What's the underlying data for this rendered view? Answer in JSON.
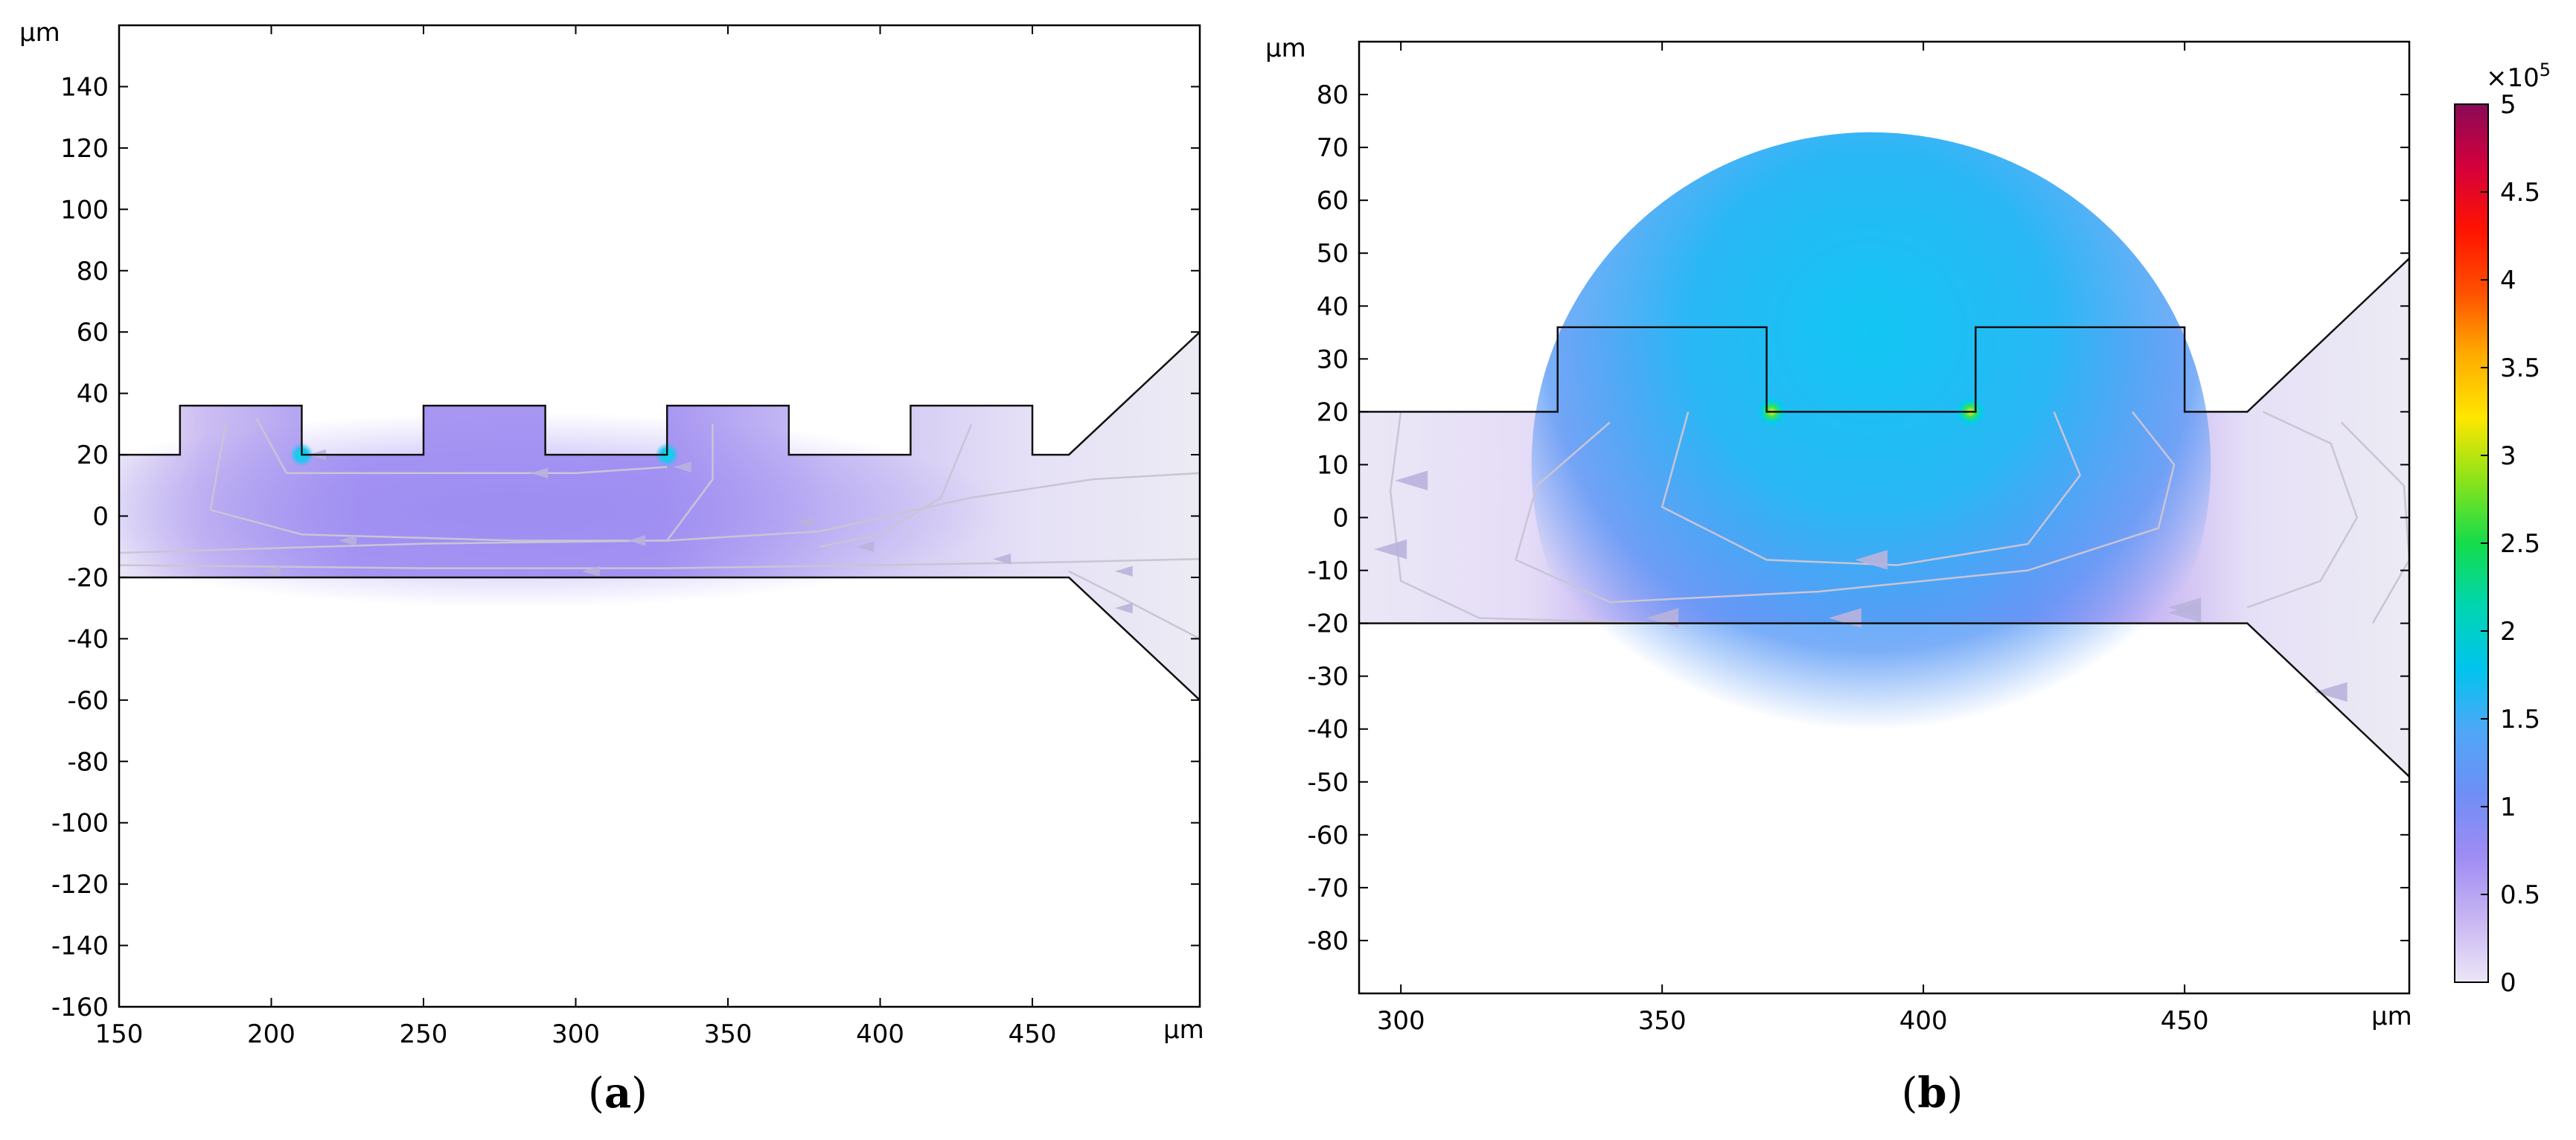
{
  "chart_data": [
    {
      "type": "heatmap",
      "panel_label": {
        "open": "(",
        "letter": "a",
        "close": ")"
      },
      "x_unit": "μm",
      "y_unit": "μm",
      "xlim": [
        150,
        505
      ],
      "ylim": [
        -160,
        160
      ],
      "x_ticks": [
        {
          "value": 150,
          "label": "150"
        },
        {
          "value": 200,
          "label": "200"
        },
        {
          "value": 250,
          "label": "250"
        },
        {
          "value": 300,
          "label": "300"
        },
        {
          "value": 350,
          "label": "350"
        },
        {
          "value": 400,
          "label": "400"
        },
        {
          "value": 450,
          "label": "450"
        }
      ],
      "y_ticks": [
        {
          "value": 140,
          "label": "140"
        },
        {
          "value": 120,
          "label": "120"
        },
        {
          "value": 100,
          "label": "100"
        },
        {
          "value": 80,
          "label": "80"
        },
        {
          "value": 60,
          "label": "60"
        },
        {
          "value": 40,
          "label": "40"
        },
        {
          "value": 20,
          "label": "20"
        },
        {
          "value": 0,
          "label": "0"
        },
        {
          "value": -20,
          "label": "-20"
        },
        {
          "value": -40,
          "label": "-40"
        },
        {
          "value": -60,
          "label": "-60"
        },
        {
          "value": -80,
          "label": "-80"
        },
        {
          "value": -100,
          "label": "-100"
        },
        {
          "value": -120,
          "label": "-120"
        },
        {
          "value": -140,
          "label": "-140"
        },
        {
          "value": -160,
          "label": "-160"
        }
      ],
      "channel_outline_top": [
        [
          150,
          20
        ],
        [
          170,
          20
        ],
        [
          170,
          36
        ],
        [
          210,
          36
        ],
        [
          210,
          20
        ],
        [
          250,
          20
        ],
        [
          250,
          36
        ],
        [
          290,
          36
        ],
        [
          290,
          20
        ],
        [
          330,
          20
        ],
        [
          330,
          36
        ],
        [
          370,
          36
        ],
        [
          370,
          20
        ],
        [
          410,
          20
        ],
        [
          410,
          36
        ],
        [
          450,
          36
        ],
        [
          450,
          20
        ],
        [
          462,
          20
        ],
        [
          505,
          60
        ]
      ],
      "channel_outline_bottom": [
        [
          150,
          -20
        ],
        [
          462,
          -20
        ],
        [
          505,
          -60
        ]
      ],
      "hotspots": [
        [
          210,
          20
        ],
        [
          330,
          20
        ]
      ],
      "streamline_arrows": [
        [
          215,
          20
        ],
        [
          288,
          14
        ],
        [
          225,
          -8
        ],
        [
          320,
          -8
        ],
        [
          200,
          -18
        ],
        [
          305,
          -18
        ],
        [
          395,
          -10
        ],
        [
          440,
          -14
        ],
        [
          480,
          -18
        ],
        [
          335,
          16
        ],
        [
          375,
          -2
        ],
        [
          480,
          -30
        ]
      ]
    },
    {
      "type": "heatmap",
      "panel_label": {
        "open": "(",
        "letter": "b",
        "close": ")"
      },
      "x_unit": "μm",
      "y_unit": "μm",
      "xlim": [
        292,
        493
      ],
      "ylim": [
        -90,
        90
      ],
      "x_ticks": [
        {
          "value": 300,
          "label": "300"
        },
        {
          "value": 350,
          "label": "350"
        },
        {
          "value": 400,
          "label": "400"
        },
        {
          "value": 450,
          "label": "450"
        }
      ],
      "y_ticks": [
        {
          "value": 80,
          "label": "80"
        },
        {
          "value": 70,
          "label": "70"
        },
        {
          "value": 60,
          "label": "60"
        },
        {
          "value": 50,
          "label": "50"
        },
        {
          "value": 40,
          "label": "40"
        },
        {
          "value": 30,
          "label": "30"
        },
        {
          "value": 20,
          "label": "20"
        },
        {
          "value": 10,
          "label": "10"
        },
        {
          "value": 0,
          "label": "0"
        },
        {
          "value": -10,
          "label": "-10"
        },
        {
          "value": -20,
          "label": "-20"
        },
        {
          "value": -30,
          "label": "-30"
        },
        {
          "value": -40,
          "label": "-40"
        },
        {
          "value": -50,
          "label": "-50"
        },
        {
          "value": -60,
          "label": "-60"
        },
        {
          "value": -70,
          "label": "-70"
        },
        {
          "value": -80,
          "label": "-80"
        }
      ],
      "channel_outline_top": [
        [
          292,
          20
        ],
        [
          330,
          20
        ],
        [
          330,
          36
        ],
        [
          370,
          36
        ],
        [
          370,
          20
        ],
        [
          410,
          20
        ],
        [
          410,
          36
        ],
        [
          450,
          36
        ],
        [
          450,
          20
        ],
        [
          462,
          20
        ],
        [
          493,
          49
        ]
      ],
      "channel_outline_bottom": [
        [
          292,
          -20
        ],
        [
          462,
          -20
        ],
        [
          493,
          -49
        ]
      ],
      "hotspots": [
        [
          371,
          20
        ],
        [
          409,
          20
        ]
      ],
      "streamline_arrows": [
        [
          302,
          7
        ],
        [
          390,
          -8
        ],
        [
          385,
          -19
        ],
        [
          350,
          -19
        ],
        [
          450,
          -18
        ],
        [
          450,
          -17
        ],
        [
          478,
          -33
        ],
        [
          298,
          -6
        ]
      ]
    }
  ],
  "colorbar": {
    "multiplier_base": "×10",
    "multiplier_exp": "5",
    "min": 0,
    "max": 5,
    "ticks": [
      {
        "value": 5,
        "label": "5"
      },
      {
        "value": 4.5,
        "label": "4.5"
      },
      {
        "value": 4,
        "label": "4"
      },
      {
        "value": 3.5,
        "label": "3.5"
      },
      {
        "value": 3,
        "label": "3"
      },
      {
        "value": 2.5,
        "label": "2.5"
      },
      {
        "value": 2,
        "label": "2"
      },
      {
        "value": 1.5,
        "label": "1.5"
      },
      {
        "value": 1,
        "label": "1"
      },
      {
        "value": 0.5,
        "label": "0.5"
      },
      {
        "value": 0,
        "label": "0"
      }
    ],
    "stops": [
      "#ece6f7",
      "#c8b6f2",
      "#9f8cf4",
      "#6f8ef6",
      "#4fa7f8",
      "#00c4ee",
      "#00d6b0",
      "#14dc4a",
      "#8ae31a",
      "#ffe600",
      "#ffac00",
      "#ff5000",
      "#ff1300",
      "#d4003c",
      "#8a0a56"
    ]
  },
  "colors": {
    "field_low": "#ebe6f6",
    "field_mid": "#a393f1",
    "field_blue": "#6d8ef5",
    "field_cyan": "#1fc6f1",
    "outline": "#111111",
    "streamline": "#c9c4d6",
    "arrow": "#b9b2dd"
  }
}
